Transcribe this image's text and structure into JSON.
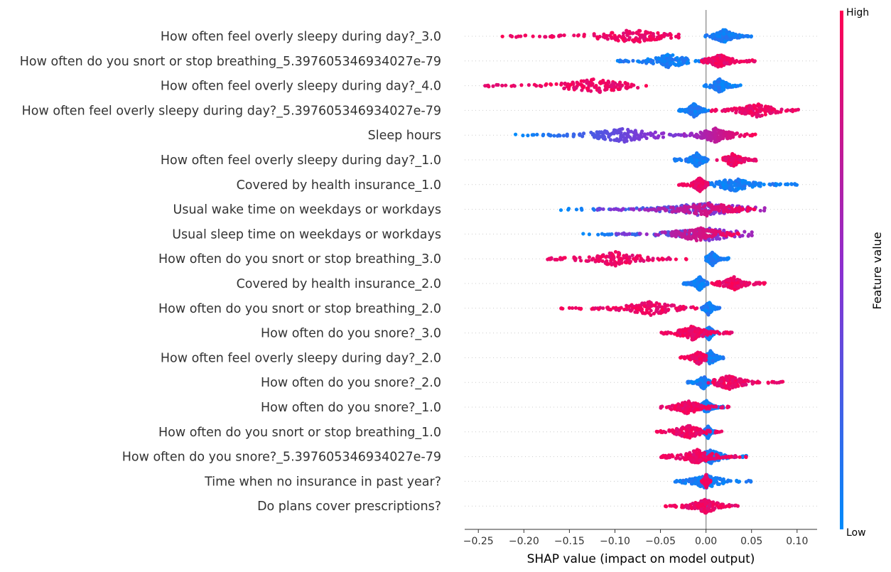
{
  "chart_data": {
    "type": "scatter",
    "subtype": "shap-beeswarm",
    "title": "",
    "xlabel": "SHAP value (impact on model output)",
    "ylabel": "",
    "xlim": [
      -0.265,
      0.122
    ],
    "xticks": [
      -0.25,
      -0.2,
      -0.15,
      -0.1,
      -0.05,
      0.0,
      0.05,
      0.1
    ],
    "xtick_labels": [
      "−0.25",
      "−0.20",
      "−0.15",
      "−0.10",
      "−0.05",
      "0.00",
      "0.05",
      "0.10"
    ],
    "grid": false,
    "colorbar": {
      "title": "Feature value",
      "high_label": "High",
      "low_label": "Low",
      "high_color": "#ff0052",
      "mid_color": "#8c2fd0",
      "low_color": "#008bfb"
    },
    "features": [
      {
        "name": "How often feel overly sleepy during day?_3.0",
        "low": {
          "min": -0.002,
          "max": 0.05,
          "center": 0.02
        },
        "high": {
          "min": -0.225,
          "max": -0.03,
          "center": -0.08
        }
      },
      {
        "name": "How often do you snort or stop breathing_5.397605346934027e-79",
        "low": {
          "min": -0.1,
          "max": 0.012,
          "center": -0.04
        },
        "high": {
          "min": -0.005,
          "max": 0.055,
          "center": 0.015
        }
      },
      {
        "name": "How often feel overly sleepy during day?_4.0",
        "low": {
          "min": -0.002,
          "max": 0.038,
          "center": 0.015
        },
        "high": {
          "min": -0.25,
          "max": -0.05,
          "center": -0.12
        }
      },
      {
        "name": "How often feel overly sleepy during day?_5.397605346934027e-79",
        "low": {
          "min": -0.03,
          "max": 0.003,
          "center": -0.013
        },
        "high": {
          "min": 0.005,
          "max": 0.105,
          "center": 0.055
        }
      },
      {
        "name": "Sleep hours",
        "low": {
          "min": -0.21,
          "max": -0.02,
          "center": -0.09
        },
        "high": {
          "min": -0.04,
          "max": 0.055,
          "center": 0.01
        }
      },
      {
        "name": "How often feel overly sleepy during day?_1.0",
        "low": {
          "min": -0.035,
          "max": 0.002,
          "center": -0.01
        },
        "high": {
          "min": 0.01,
          "max": 0.055,
          "center": 0.03
        }
      },
      {
        "name": "Covered by health insurance_1.0",
        "low": {
          "min": 0.0,
          "max": 0.1,
          "center": 0.03
        },
        "high": {
          "min": -0.03,
          "max": 0.002,
          "center": -0.007
        }
      },
      {
        "name": "Usual wake time on weekdays or workdays",
        "low": {
          "min": -0.16,
          "max": 0.065,
          "center": 0.0
        },
        "high": {
          "min": -0.12,
          "max": 0.06,
          "center": 0.0
        }
      },
      {
        "name": "Usual sleep time on weekdays or workdays",
        "low": {
          "min": -0.135,
          "max": 0.055,
          "center": 0.0
        },
        "high": {
          "min": -0.1,
          "max": 0.04,
          "center": -0.01
        }
      },
      {
        "name": "How often do you snort or stop breathing_3.0",
        "low": {
          "min": 0.0,
          "max": 0.025,
          "center": 0.007
        },
        "high": {
          "min": -0.175,
          "max": -0.02,
          "center": -0.1
        }
      },
      {
        "name": "Covered by health insurance_2.0",
        "low": {
          "min": -0.025,
          "max": 0.002,
          "center": -0.007
        },
        "high": {
          "min": 0.005,
          "max": 0.065,
          "center": 0.03
        }
      },
      {
        "name": "How often do you snort or stop breathing_2.0",
        "low": {
          "min": -0.005,
          "max": 0.015,
          "center": 0.003
        },
        "high": {
          "min": -0.16,
          "max": -0.01,
          "center": -0.06
        }
      },
      {
        "name": "How often do you snore?_3.0",
        "low": {
          "min": -0.01,
          "max": 0.015,
          "center": 0.003
        },
        "high": {
          "min": -0.05,
          "max": 0.03,
          "center": -0.015
        }
      },
      {
        "name": "How often feel overly sleepy during day?_2.0",
        "low": {
          "min": -0.01,
          "max": 0.02,
          "center": 0.005
        },
        "high": {
          "min": -0.035,
          "max": 0.0,
          "center": -0.008
        }
      },
      {
        "name": "How often do you snore?_2.0",
        "low": {
          "min": -0.02,
          "max": 0.005,
          "center": -0.003
        },
        "high": {
          "min": 0.0,
          "max": 0.085,
          "center": 0.025
        }
      },
      {
        "name": "How often do you snore?_1.0",
        "low": {
          "min": -0.01,
          "max": 0.02,
          "center": 0.0
        },
        "high": {
          "min": -0.05,
          "max": 0.03,
          "center": -0.02
        }
      },
      {
        "name": "How often do you snort or stop breathing_1.0",
        "low": {
          "min": -0.005,
          "max": 0.01,
          "center": 0.002
        },
        "high": {
          "min": -0.055,
          "max": 0.02,
          "center": -0.02
        }
      },
      {
        "name": "How often do you snore?_5.397605346934027e-79",
        "low": {
          "min": -0.02,
          "max": 0.045,
          "center": 0.005
        },
        "high": {
          "min": -0.05,
          "max": 0.045,
          "center": -0.01
        }
      },
      {
        "name": "Time when no insurance in past year?",
        "low": {
          "min": -0.035,
          "max": 0.05,
          "center": 0.0
        },
        "high": {
          "min": -0.005,
          "max": 0.005,
          "center": 0.0
        }
      },
      {
        "name": "Do plans cover prescriptions?",
        "low": {
          "min": -0.005,
          "max": 0.005,
          "center": 0.0
        },
        "high": {
          "min": -0.045,
          "max": 0.035,
          "center": 0.0
        }
      }
    ]
  }
}
